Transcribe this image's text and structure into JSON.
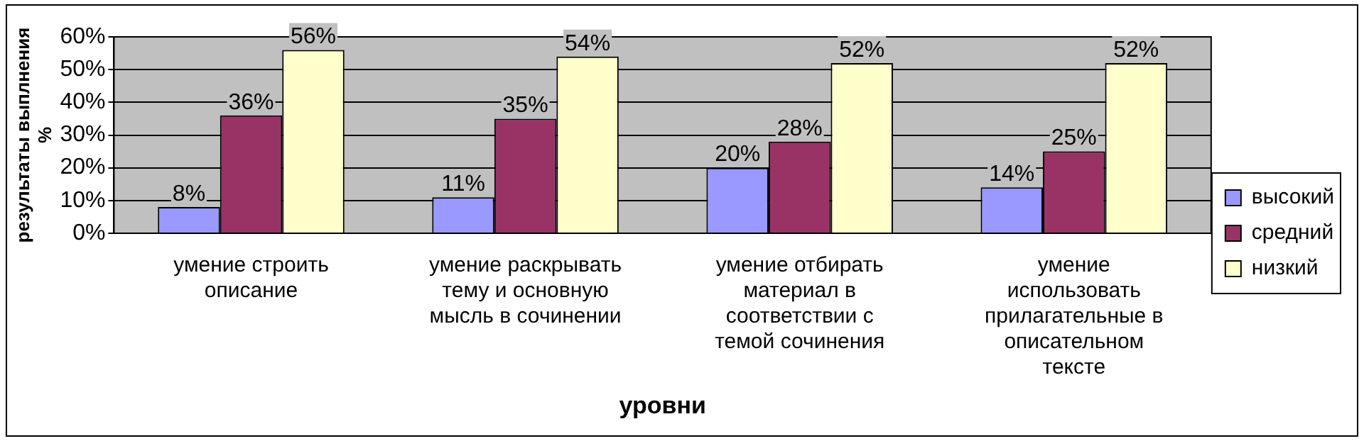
{
  "chart_data": {
    "type": "bar",
    "ylabel": "результаты выплнения %",
    "xlabel": "уровни",
    "categories": [
      "умение строить описание",
      "умение раскрывать тему и основную мысль в сочинении",
      "умение отбирать материал в соответствии с темой сочинения",
      "умение использовать прилагательные в описательном тексте"
    ],
    "series": [
      {
        "name": "высокий",
        "color": "#9999ff",
        "values": [
          8,
          11,
          20,
          14
        ],
        "value_labels": [
          "8%",
          "11%",
          "20%",
          "14%"
        ]
      },
      {
        "name": "средний",
        "color": "#993366",
        "values": [
          36,
          35,
          28,
          25
        ],
        "value_labels": [
          "36%",
          "35%",
          "28%",
          "25%"
        ]
      },
      {
        "name": "низкий",
        "color": "#ffffcc",
        "values": [
          56,
          54,
          52,
          52
        ],
        "value_labels": [
          "56%",
          "54%",
          "52%",
          "52%"
        ]
      }
    ],
    "ylim": [
      0,
      60
    ],
    "yticks": [
      {
        "value": 0,
        "label": "0%"
      },
      {
        "value": 10,
        "label": "10%"
      },
      {
        "value": 20,
        "label": "20%"
      },
      {
        "value": 30,
        "label": "30%"
      },
      {
        "value": 40,
        "label": "40%"
      },
      {
        "value": 50,
        "label": "50%"
      },
      {
        "value": 60,
        "label": "60%"
      }
    ],
    "grid": "y",
    "legend": "right"
  }
}
